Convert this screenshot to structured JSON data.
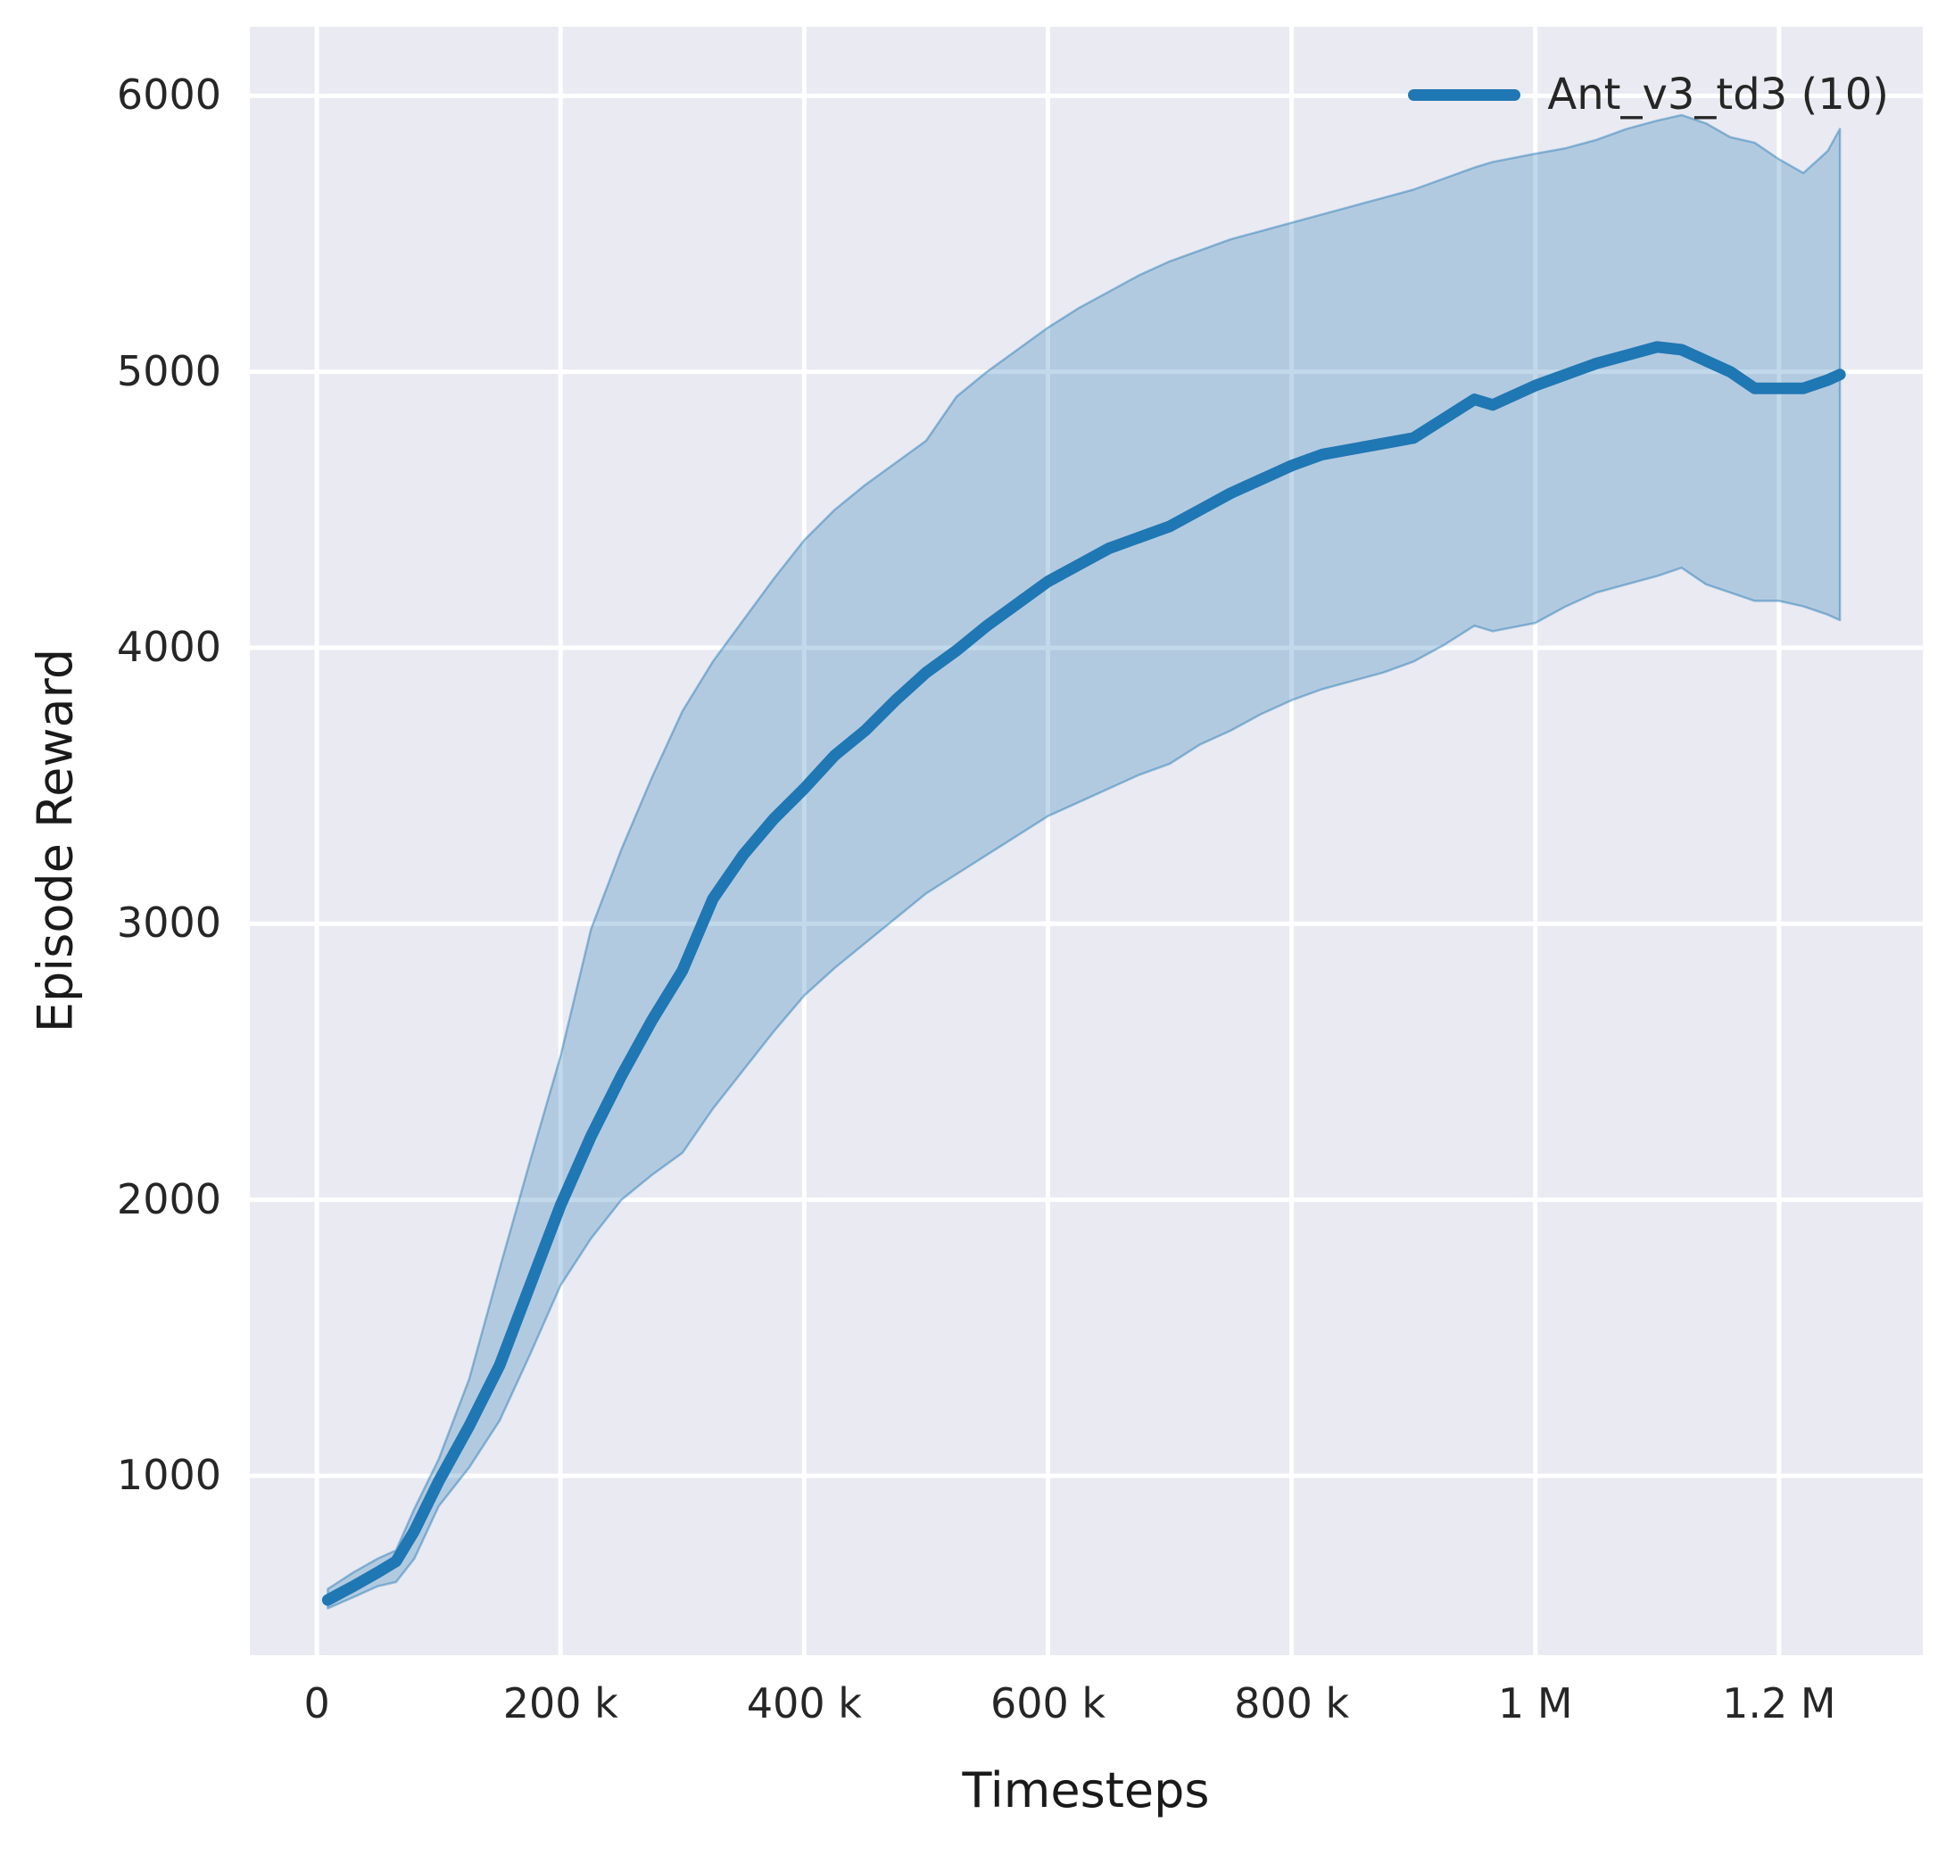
{
  "axes": {
    "x_label": "Timesteps",
    "y_label": "Episode Reward"
  },
  "legend": {
    "label": "Ant_v3_td3 (10)"
  },
  "colors": {
    "line": "#1f77b4",
    "band_alpha": 0.28,
    "band_edge_alpha": 0.45,
    "axes_background": "#eaeaf2",
    "grid": "#ffffff",
    "text": "#262626",
    "figure_background": "#ffffff"
  },
  "chart_data": {
    "type": "line",
    "title": "",
    "xlabel": "Timesteps",
    "ylabel": "Episode Reward",
    "grid": true,
    "legend_position": "upper right",
    "xlim": [
      -55000,
      1318000
    ],
    "ylim": [
      350,
      6250
    ],
    "x_ticks": [
      {
        "value": 0,
        "label": "0"
      },
      {
        "value": 200000,
        "label": "200 k"
      },
      {
        "value": 400000,
        "label": "400 k"
      },
      {
        "value": 600000,
        "label": "600 k"
      },
      {
        "value": 800000,
        "label": "800 k"
      },
      {
        "value": 1000000,
        "label": "1 M"
      },
      {
        "value": 1200000,
        "label": "1.2 M"
      }
    ],
    "y_ticks": [
      {
        "value": 1000,
        "label": "1000"
      },
      {
        "value": 2000,
        "label": "2000"
      },
      {
        "value": 3000,
        "label": "3000"
      },
      {
        "value": 4000,
        "label": "4000"
      },
      {
        "value": 5000,
        "label": "5000"
      },
      {
        "value": 6000,
        "label": "6000"
      }
    ],
    "series": [
      {
        "name": "Ant_v3_td3 (10)",
        "color": "#1f77b4",
        "x": [
          9000,
          30000,
          50000,
          65000,
          80000,
          100000,
          125000,
          150000,
          175000,
          200000,
          225000,
          250000,
          275000,
          300000,
          325000,
          350000,
          375000,
          400000,
          425000,
          450000,
          475000,
          500000,
          525000,
          550000,
          575000,
          600000,
          625000,
          650000,
          675000,
          700000,
          725000,
          750000,
          775000,
          800000,
          825000,
          850000,
          875000,
          900000,
          925000,
          950000,
          965000,
          1000000,
          1025000,
          1050000,
          1075000,
          1100000,
          1120000,
          1140000,
          1160000,
          1180000,
          1200000,
          1220000,
          1240000,
          1250000
        ],
        "mean": [
          550,
          600,
          650,
          690,
          800,
          980,
          1180,
          1400,
          1690,
          1980,
          2230,
          2450,
          2650,
          2830,
          3090,
          3250,
          3380,
          3490,
          3610,
          3700,
          3810,
          3910,
          3990,
          4080,
          4160,
          4240,
          4300,
          4360,
          4400,
          4440,
          4500,
          4560,
          4610,
          4660,
          4700,
          4720,
          4740,
          4760,
          4830,
          4900,
          4880,
          4950,
          4990,
          5030,
          5060,
          5090,
          5080,
          5040,
          5000,
          4940,
          4940,
          4940,
          4970,
          4990
        ],
        "lower": [
          520,
          560,
          600,
          615,
          700,
          890,
          1030,
          1200,
          1440,
          1690,
          1860,
          2000,
          2090,
          2170,
          2330,
          2470,
          2610,
          2740,
          2840,
          2930,
          3020,
          3110,
          3180,
          3250,
          3320,
          3390,
          3440,
          3490,
          3540,
          3580,
          3650,
          3700,
          3760,
          3810,
          3850,
          3880,
          3910,
          3950,
          4010,
          4080,
          4060,
          4090,
          4150,
          4200,
          4230,
          4260,
          4290,
          4230,
          4200,
          4170,
          4170,
          4150,
          4120,
          4100
        ],
        "upper": [
          590,
          650,
          700,
          730,
          880,
          1060,
          1350,
          1750,
          2140,
          2520,
          2980,
          3270,
          3530,
          3770,
          3950,
          4100,
          4250,
          4390,
          4500,
          4590,
          4670,
          4750,
          4910,
          5000,
          5080,
          5160,
          5230,
          5290,
          5350,
          5400,
          5440,
          5480,
          5510,
          5540,
          5570,
          5600,
          5630,
          5660,
          5700,
          5740,
          5760,
          5790,
          5810,
          5840,
          5880,
          5910,
          5930,
          5900,
          5850,
          5830,
          5770,
          5720,
          5800,
          5880
        ]
      }
    ]
  }
}
